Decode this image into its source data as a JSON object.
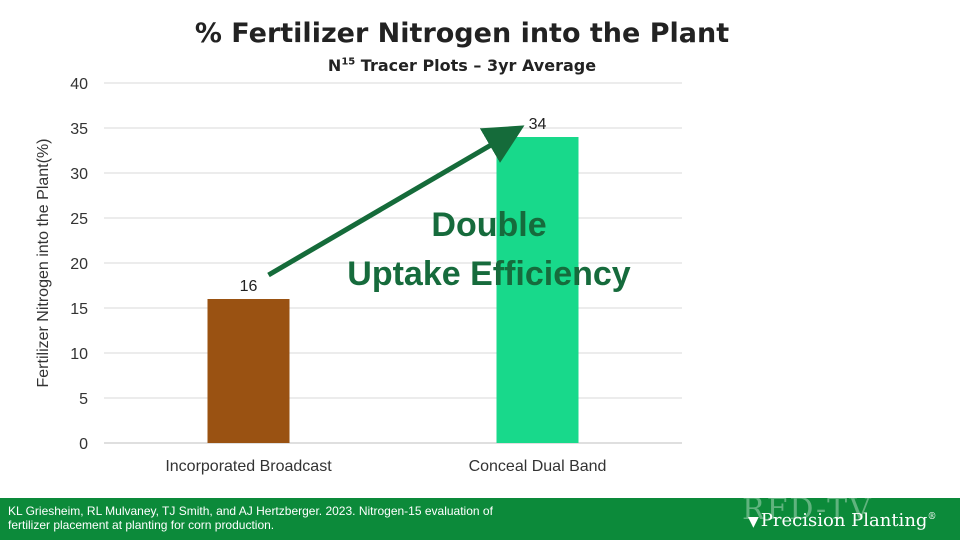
{
  "slide": {
    "title": "% Fertilizer Nitrogen into the Plant",
    "subtitle_prefix": "N",
    "subtitle_sup": "15",
    "subtitle_rest": " Tracer Plots – 3yr Average"
  },
  "chart_data": {
    "type": "bar",
    "categories": [
      "Incorporated Broadcast",
      "Conceal Dual Band"
    ],
    "values": [
      16,
      34
    ],
    "data_labels": [
      "16",
      "34"
    ],
    "ylabel": "Fertilizer Nitrogen into the Plant(%)",
    "xlabel": "",
    "ylim": [
      0,
      40
    ],
    "yticks": [
      0,
      5,
      10,
      15,
      20,
      25,
      30,
      35,
      40
    ],
    "grid": true,
    "annotation": {
      "line1": "Double",
      "line2": "Uptake Efficiency"
    }
  },
  "colors": {
    "bar_broadcast": "#9a5212",
    "bar_dual_band": "#18d98b",
    "arrow": "#156b3a",
    "annotation": "#166b3c",
    "footer": "#0c8a3a"
  },
  "footer": {
    "citation": "KL Griesheim, RL Mulvaney, TJ Smith, and AJ Hertzberger. 2023. Nitrogen-15 evaluation of fertilizer placement at planting for corn production.",
    "watermark": "RFD-TV",
    "brand_mark": "▼",
    "brand": "Precision Planting",
    "brand_reg": "®"
  }
}
